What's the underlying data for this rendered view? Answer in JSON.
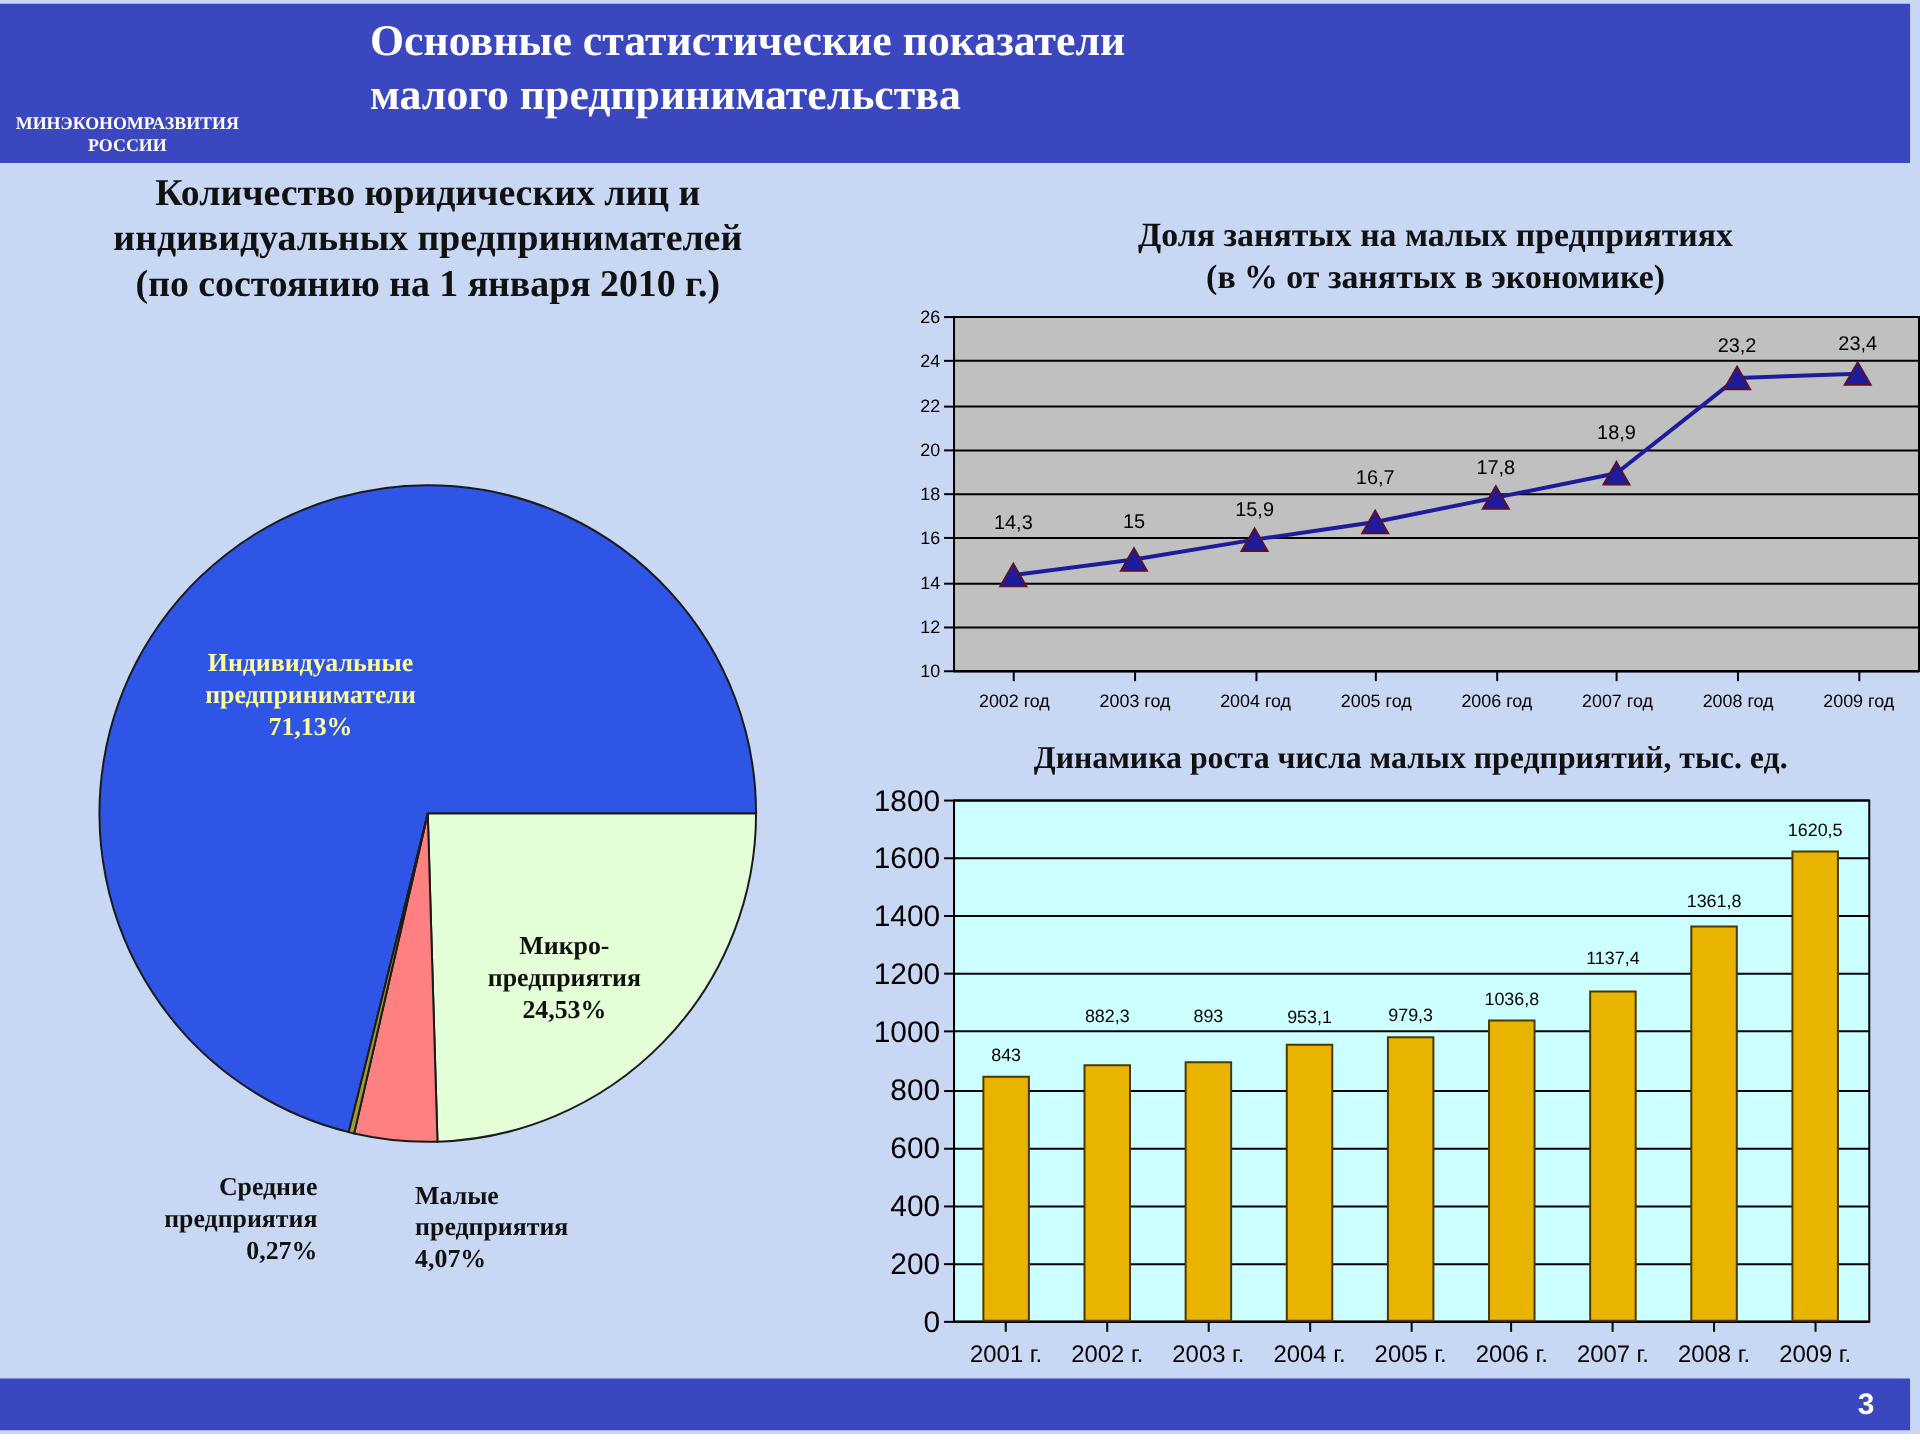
{
  "chart_data": [
    {
      "type": "other",
      "title": "Основные статистические показатели малого предпринимательства",
      "annotations": [
        "МИНЭКОНОМРАЗВИТИЯ РОССИИ",
        "3"
      ]
    },
    {
      "type": "pie",
      "title": "Количество юридических лиц и индивидуальных предпринимателей (по состоянию на 1 января 2010 г.)",
      "categories": [
        "Индивидуальные предприниматели",
        "Микро-предприятия",
        "Малые предприятия",
        "Средние предприятия"
      ],
      "values": [
        71.13,
        24.53,
        4.07,
        0.27
      ],
      "colors": [
        "#2f55e6",
        "#e4ffd8",
        "#ff8080",
        "#a09a30"
      ],
      "value_labels": [
        "71,13%",
        "24,53%",
        "4,07%",
        "0,27%"
      ]
    },
    {
      "type": "line",
      "title": "Доля занятых на малых предприятиях (в % от занятых в экономике)",
      "categories": [
        "2002 год",
        "2003 год",
        "2004 год",
        "2005 год",
        "2006 год",
        "2007 год",
        "2008 год",
        "2009 год"
      ],
      "values": [
        14.3,
        15,
        15.9,
        16.7,
        17.8,
        18.9,
        23.2,
        23.4
      ],
      "color": "#1c1c9c",
      "marker": "triangle",
      "value_labels": [
        "14,3",
        "15",
        "15,9",
        "16,7",
        "17,8",
        "18,9",
        "23,2",
        "23,4"
      ],
      "ylim": [
        10,
        26
      ],
      "yticks": [
        10,
        12,
        14,
        16,
        18,
        20,
        22,
        24,
        26
      ],
      "grid": "y"
    },
    {
      "type": "bar",
      "title": "Динамика роста числа малых предприятий, тыс. ед.",
      "categories": [
        "2001 г.",
        "2002 г.",
        "2003 г.",
        "2004 г.",
        "2005 г.",
        "2006 г.",
        "2007 г.",
        "2008 г.",
        "2009 г."
      ],
      "values": [
        843,
        882.3,
        893,
        953.1,
        979.3,
        1036.8,
        1137.4,
        1361.8,
        1620.5
      ],
      "color": "#e8b400",
      "value_labels": [
        "843",
        "882,3",
        "893",
        "953,1",
        "979,3",
        "1036,8",
        "1137,4",
        "1361,8",
        "1620,5"
      ],
      "ylim": [
        0,
        1800
      ],
      "yticks": [
        0,
        200,
        400,
        600,
        800,
        1000,
        1200,
        1400,
        1600,
        1800
      ],
      "grid": "y"
    }
  ]
}
